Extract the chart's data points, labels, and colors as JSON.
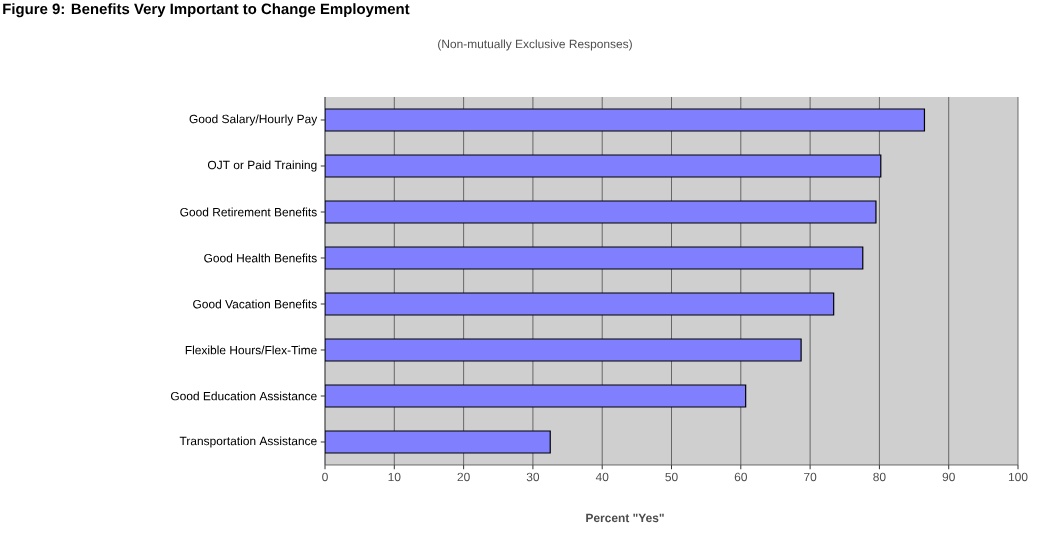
{
  "chart_data": {
    "type": "bar",
    "orientation": "horizontal",
    "title": "Figure 9: Benefits Very Important to Change Employment",
    "subtitle": "(Non-mutually Exclusive Responses)",
    "xlabel": "Percent \"Yes\"",
    "categories": [
      "Good Salary/Hourly Pay",
      "OJT or Paid Training",
      "Good Retirement Benefits",
      "Good Health Benefits",
      "Good Vacation Benefits",
      "Flexible Hours/Flex-Time",
      "Good Education Assistance",
      "Transportation Assistance"
    ],
    "values": [
      86.5,
      80.2,
      79.5,
      77.6,
      73.4,
      68.7,
      60.7,
      32.5
    ],
    "color": "#8080ff",
    "xlim": [
      0,
      100
    ],
    "xticks": [
      0,
      10,
      20,
      30,
      40,
      50,
      60,
      70,
      80,
      90,
      100
    ],
    "grid": "x"
  }
}
